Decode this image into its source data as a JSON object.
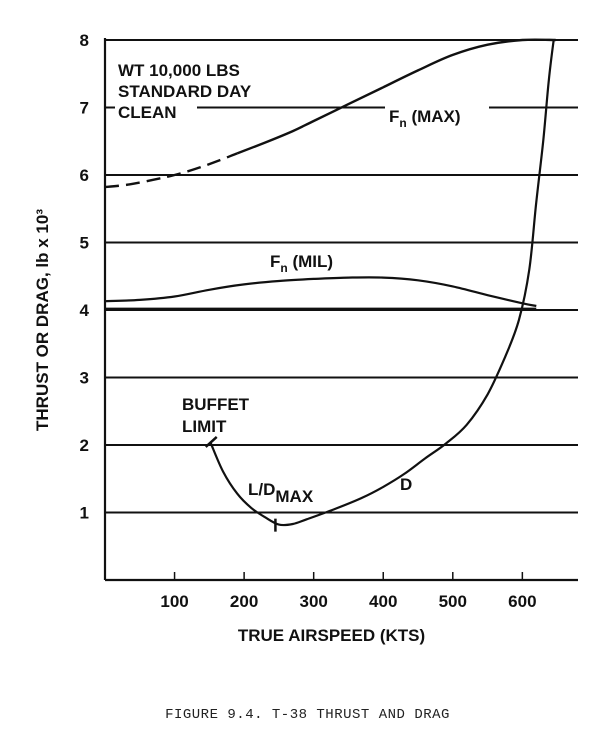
{
  "chart_data": {
    "type": "line",
    "title": "",
    "xlabel": "TRUE AIRSPEED (KTS)",
    "ylabel": "THRUST OR DRAG, lb x 10³",
    "xlim": [
      0,
      680
    ],
    "ylim": [
      0,
      8
    ],
    "grid": "horizontal",
    "x_ticks": [
      "100",
      "200",
      "300",
      "400",
      "500",
      "600"
    ],
    "x_tick_values": [
      100,
      200,
      300,
      400,
      500,
      600
    ],
    "y_ticks": [
      "1",
      "2",
      "3",
      "4",
      "5",
      "6",
      "7",
      "8"
    ],
    "y_tick_values": [
      1,
      2,
      3,
      4,
      5,
      6,
      7,
      8
    ],
    "info_box": [
      "WT 10,000 LBS",
      "STANDARD DAY",
      "CLEAN"
    ],
    "series": [
      {
        "name": "Fn (MAX)",
        "label_main": "F",
        "label_sub": "n",
        "label_rest": " (MAX)",
        "dashed_segment": [
          [
            0,
            5.82
          ],
          [
            35,
            5.86
          ],
          [
            70,
            5.93
          ],
          [
            100,
            6.0
          ],
          [
            130,
            6.09
          ],
          [
            160,
            6.2
          ],
          [
            190,
            6.32
          ]
        ],
        "values": [
          [
            190,
            6.32
          ],
          [
            230,
            6.48
          ],
          [
            270,
            6.65
          ],
          [
            300,
            6.8
          ],
          [
            350,
            7.05
          ],
          [
            400,
            7.3
          ],
          [
            450,
            7.55
          ],
          [
            500,
            7.78
          ],
          [
            550,
            7.93
          ],
          [
            600,
            8.0
          ],
          [
            648,
            8.0
          ]
        ]
      },
      {
        "name": "Fn (MIL)",
        "label_main": "F",
        "label_sub": "n",
        "label_rest": " (MIL)",
        "values": [
          [
            0,
            4.13
          ],
          [
            50,
            4.15
          ],
          [
            100,
            4.2
          ],
          [
            150,
            4.3
          ],
          [
            200,
            4.38
          ],
          [
            250,
            4.43
          ],
          [
            300,
            4.46
          ],
          [
            350,
            4.48
          ],
          [
            400,
            4.48
          ],
          [
            450,
            4.44
          ],
          [
            500,
            4.35
          ],
          [
            550,
            4.22
          ],
          [
            600,
            4.1
          ],
          [
            620,
            4.06
          ]
        ]
      },
      {
        "name": "D",
        "values": [
          [
            152,
            2.03
          ],
          [
            170,
            1.6
          ],
          [
            190,
            1.28
          ],
          [
            210,
            1.07
          ],
          [
            230,
            0.93
          ],
          [
            250,
            0.82
          ],
          [
            270,
            0.83
          ],
          [
            290,
            0.9
          ],
          [
            330,
            1.05
          ],
          [
            370,
            1.22
          ],
          [
            400,
            1.38
          ],
          [
            430,
            1.57
          ],
          [
            460,
            1.8
          ],
          [
            490,
            2.02
          ],
          [
            520,
            2.3
          ],
          [
            550,
            2.75
          ],
          [
            575,
            3.3
          ],
          [
            595,
            3.85
          ],
          [
            610,
            4.6
          ],
          [
            620,
            5.6
          ],
          [
            630,
            6.5
          ],
          [
            638,
            7.4
          ],
          [
            645,
            8.0
          ]
        ]
      }
    ],
    "lower_line": {
      "y": 4.02,
      "x_start": 0,
      "x_end": 620
    },
    "annotations": {
      "buffet": [
        "BUFFET",
        "LIMIT"
      ],
      "buffet_point": [
        152,
        2.03
      ],
      "ld_main": "L/D",
      "ld_sub": "MAX",
      "ld_point": [
        245,
        0.82
      ],
      "drag_label": "D"
    }
  },
  "caption": "FIGURE 9.4.   T-38 THRUST AND DRAG"
}
